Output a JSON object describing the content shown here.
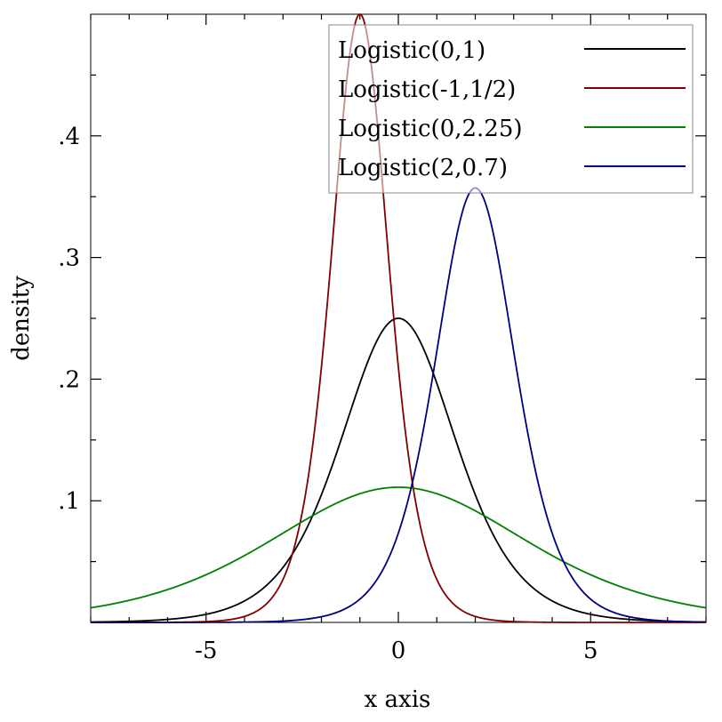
{
  "chart_data": {
    "type": "line",
    "title": "",
    "xlabel": "x axis",
    "ylabel": "density",
    "xlim": [
      -8,
      8
    ],
    "ylim": [
      0,
      0.5
    ],
    "x_ticks": [
      -5,
      0,
      5
    ],
    "x_tick_labels": [
      "-5",
      "0",
      "5"
    ],
    "y_ticks": [
      0.1,
      0.2,
      0.3,
      0.4
    ],
    "y_tick_labels": [
      ".1",
      ".2",
      ".3",
      ".4"
    ],
    "legend_position": "top-right",
    "grid": false,
    "series": [
      {
        "name": "Logistic(0,1)",
        "distribution": "logistic",
        "location": 0,
        "scale": 1,
        "color": "#000000"
      },
      {
        "name": "Logistic(-1,1/2)",
        "distribution": "logistic",
        "location": -1,
        "scale": 0.5,
        "color": "#7f0000"
      },
      {
        "name": "Logistic(0,2.25)",
        "distribution": "logistic",
        "location": 0,
        "scale": 2.25,
        "color": "#007f00"
      },
      {
        "name": "Logistic(2,0.7)",
        "distribution": "logistic",
        "location": 2,
        "scale": 0.7,
        "color": "#00007f"
      }
    ]
  }
}
